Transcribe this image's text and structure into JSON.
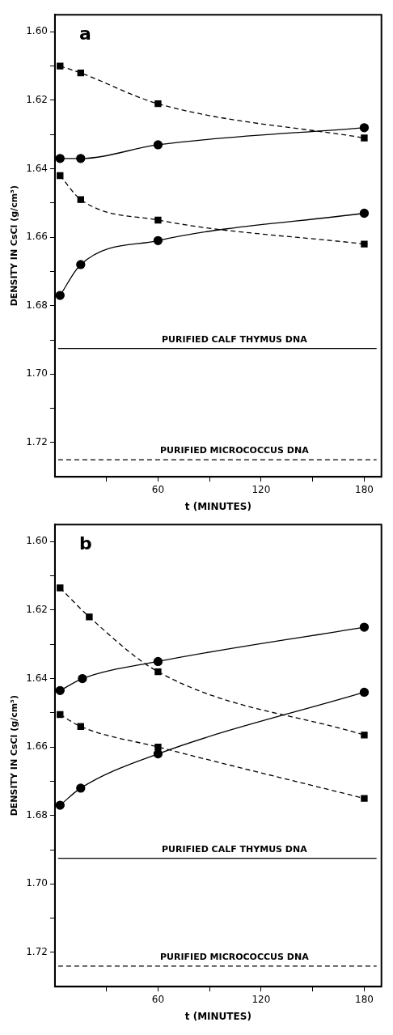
{
  "chart_data": [
    {
      "type": "line",
      "title": "a",
      "xlabel": "t (MINUTES)",
      "ylabel": "DENSITY IN CsCl (g/cm³)",
      "xlim": [
        0,
        190
      ],
      "xticks": [
        {
          "value": 30,
          "label": null
        },
        60,
        {
          "value": 90,
          "label": null
        },
        120,
        {
          "value": 150,
          "label": null
        },
        180
      ],
      "ylim": [
        1.73,
        1.595
      ],
      "yticks": [
        {
          "value": 1.6,
          "label": "1.60"
        },
        {
          "value": 1.61,
          "label": null
        },
        1.62,
        {
          "value": 1.63,
          "label": null
        },
        1.64,
        {
          "value": 1.65,
          "label": null
        },
        1.66,
        {
          "value": 1.67,
          "label": null
        },
        1.68,
        {
          "value": 1.69,
          "label": null
        },
        {
          "value": 1.7,
          "label": "1.70"
        },
        {
          "value": 1.71,
          "label": null
        },
        1.72
      ],
      "grid": false,
      "legend": false,
      "series": [
        {
          "color": "#000000",
          "marker": "square",
          "line_style": "dashed",
          "x": [
            3,
            15,
            60,
            180
          ],
          "values": [
            1.61,
            1.612,
            1.621,
            1.631
          ]
        },
        {
          "color": "#000000",
          "marker": "circle",
          "line_style": "solid",
          "x": [
            3,
            15,
            60,
            180
          ],
          "values": [
            1.637,
            1.637,
            1.633,
            1.628
          ]
        },
        {
          "color": "#000000",
          "marker": "square",
          "line_style": "dashed",
          "x": [
            3,
            15,
            60,
            180
          ],
          "values": [
            1.642,
            1.649,
            1.655,
            1.662
          ]
        },
        {
          "color": "#000000",
          "marker": "circle",
          "line_style": "solid",
          "x": [
            3,
            15,
            60,
            180
          ],
          "values": [
            1.677,
            1.668,
            1.661,
            1.653
          ]
        }
      ],
      "ref_lines": [
        {
          "axis": "y",
          "value": 1.6925,
          "label": "PURIFIED CALF THYMUS DNA",
          "color": "#000000",
          "line_style": "solid"
        },
        {
          "axis": "y",
          "value": 1.725,
          "label": "PURIFIED MICROCOCCUS DNA",
          "color": "#000000",
          "line_style": "dashed"
        }
      ]
    },
    {
      "type": "line",
      "title": "b",
      "xlabel": "t (MINUTES)",
      "ylabel": "DENSITY IN CsCl (g/cm³)",
      "xlim": [
        0,
        190
      ],
      "xticks": [
        {
          "value": 30,
          "label": null
        },
        60,
        {
          "value": 90,
          "label": null
        },
        120,
        {
          "value": 150,
          "label": null
        },
        180
      ],
      "ylim": [
        1.73,
        1.595
      ],
      "yticks": [
        {
          "value": 1.6,
          "label": "1.60"
        },
        {
          "value": 1.61,
          "label": null
        },
        1.62,
        {
          "value": 1.63,
          "label": null
        },
        1.64,
        {
          "value": 1.65,
          "label": null
        },
        1.66,
        {
          "value": 1.67,
          "label": null
        },
        1.68,
        {
          "value": 1.69,
          "label": null
        },
        {
          "value": 1.7,
          "label": "1.70"
        },
        {
          "value": 1.71,
          "label": null
        },
        1.72
      ],
      "grid": false,
      "legend": false,
      "series": [
        {
          "color": "#000000",
          "marker": "square",
          "line_style": "dashed",
          "x": [
            3,
            20,
            60,
            180
          ],
          "values": [
            1.6135,
            1.622,
            1.638,
            1.6565
          ]
        },
        {
          "color": "#000000",
          "marker": "circle",
          "line_style": "solid",
          "x": [
            3,
            16,
            60,
            180
          ],
          "values": [
            1.6435,
            1.64,
            1.635,
            1.625
          ]
        },
        {
          "color": "#000000",
          "marker": "square",
          "line_style": "dashed",
          "x": [
            3,
            15,
            60,
            180
          ],
          "values": [
            1.6505,
            1.654,
            1.66,
            1.675
          ]
        },
        {
          "color": "#000000",
          "marker": "circle",
          "line_style": "solid",
          "x": [
            3,
            15,
            60,
            180
          ],
          "values": [
            1.677,
            1.672,
            1.662,
            1.644
          ]
        }
      ],
      "ref_lines": [
        {
          "axis": "y",
          "value": 1.6925,
          "label": "PURIFIED CALF THYMUS DNA",
          "color": "#000000",
          "line_style": "solid"
        },
        {
          "axis": "y",
          "value": 1.724,
          "label": "PURIFIED MICROCOCCUS DNA",
          "color": "#000000",
          "line_style": "dashed"
        }
      ]
    }
  ]
}
